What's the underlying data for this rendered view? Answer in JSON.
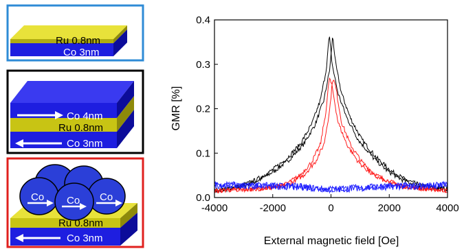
{
  "panels": {
    "top": {
      "frame_color": "#2e8bd6",
      "layer_upper": "Ru 0.8nm",
      "layer_lower": "Co 3nm"
    },
    "middle": {
      "frame_color": "#000000",
      "layer_top": "Co 4nm",
      "layer_mid": "Ru 0.8nm",
      "layer_bottom": "Co 3nm"
    },
    "bottom": {
      "frame_color": "#e0201e",
      "cluster_label": "Co",
      "layer_mid": "Ru 0.8nm",
      "layer_bottom": "Co 3nm"
    }
  },
  "colors": {
    "ru": "#c8c414",
    "co": "#1e1ee0",
    "co_dark": "#0c0c9a",
    "cluster": "#2b3fd8",
    "black_series": "#000000",
    "red_series": "#ff1a1a",
    "blue_series": "#1a1aff"
  },
  "chart_data": {
    "type": "line",
    "xlabel": "External magnetic field [Oe]",
    "ylabel": "GMR [%]",
    "xlim": [
      -4000,
      4000
    ],
    "ylim": [
      0,
      0.4
    ],
    "xticks": [
      "-4000",
      "-2000",
      "0",
      "2000",
      "4000"
    ],
    "yticks": [
      "0.0",
      "0.1",
      "0.2",
      "0.3",
      "0.4"
    ],
    "series": [
      {
        "color": "#000000",
        "x": [
          -4000,
          -3500,
          -3000,
          -2500,
          -2000,
          -1500,
          -1000,
          -600,
          -300,
          -100,
          0,
          100,
          300,
          600,
          1000,
          1500,
          2000,
          2500,
          3000,
          3500,
          4000
        ],
        "y": [
          0.015,
          0.02,
          0.027,
          0.04,
          0.06,
          0.085,
          0.12,
          0.165,
          0.22,
          0.29,
          0.365,
          0.3,
          0.235,
          0.18,
          0.13,
          0.09,
          0.06,
          0.04,
          0.028,
          0.022,
          0.02
        ]
      },
      {
        "color": "#ff1a1a",
        "x": [
          -4000,
          -3500,
          -3000,
          -2500,
          -2000,
          -1500,
          -1000,
          -600,
          -300,
          -100,
          0,
          100,
          300,
          600,
          1000,
          1500,
          2000,
          2500,
          3000,
          3500,
          4000
        ],
        "y": [
          0.015,
          0.017,
          0.018,
          0.02,
          0.022,
          0.03,
          0.05,
          0.08,
          0.12,
          0.2,
          0.27,
          0.25,
          0.17,
          0.12,
          0.08,
          0.05,
          0.035,
          0.025,
          0.02,
          0.018,
          0.015
        ]
      },
      {
        "color": "#1a1aff",
        "x": [
          -4000,
          -3000,
          -2000,
          -1000,
          0,
          1000,
          2000,
          3000,
          4000
        ],
        "y": [
          0.028,
          0.027,
          0.026,
          0.024,
          0.018,
          0.022,
          0.025,
          0.026,
          0.028
        ]
      }
    ]
  }
}
